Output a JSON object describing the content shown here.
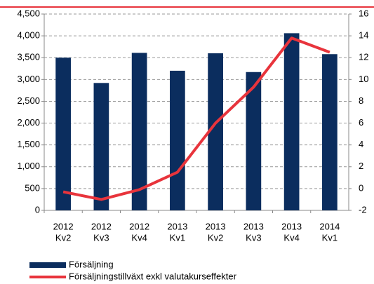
{
  "chart_data": {
    "type": "bar_line",
    "categories": [
      [
        "2012",
        "Kv2"
      ],
      [
        "2012",
        "Kv3"
      ],
      [
        "2012",
        "Kv4"
      ],
      [
        "2013",
        "Kv1"
      ],
      [
        "2013",
        "Kv2"
      ],
      [
        "2013",
        "Kv3"
      ],
      [
        "2013",
        "Kv4"
      ],
      [
        "2014",
        "Kv1"
      ]
    ],
    "series": [
      {
        "name": "Försäljning",
        "color": "#0b2d5e",
        "type": "bar",
        "values": [
          3500,
          2920,
          3610,
          3200,
          3600,
          3170,
          4060,
          3580
        ]
      },
      {
        "name": "Försäljningstillväxt exkl valutakurseffekter",
        "color": "#e8343c",
        "type": "line",
        "axis": "y2",
        "values": [
          -0.3,
          -1.0,
          -0.1,
          1.5,
          6.0,
          9.3,
          13.8,
          12.5
        ]
      }
    ],
    "ylim": [
      0,
      4500
    ],
    "yticks": [
      0,
      500,
      {
        "value": 1000,
        "label": "1,000"
      },
      {
        "value": 1500,
        "label": "1,500"
      },
      {
        "value": 2000,
        "label": "2,000"
      },
      {
        "value": 2500,
        "label": "2,500"
      },
      {
        "value": 3000,
        "label": "3,000"
      },
      {
        "value": 3500,
        "label": "3,500"
      },
      {
        "value": 4000,
        "label": "4,000"
      },
      {
        "value": 4500,
        "label": "4,500"
      }
    ],
    "y2lim": [
      -2,
      16
    ],
    "y2ticks": [
      -2,
      0,
      2,
      4,
      6,
      8,
      10,
      12,
      14,
      16
    ],
    "grid": true,
    "legend": "bottom"
  }
}
